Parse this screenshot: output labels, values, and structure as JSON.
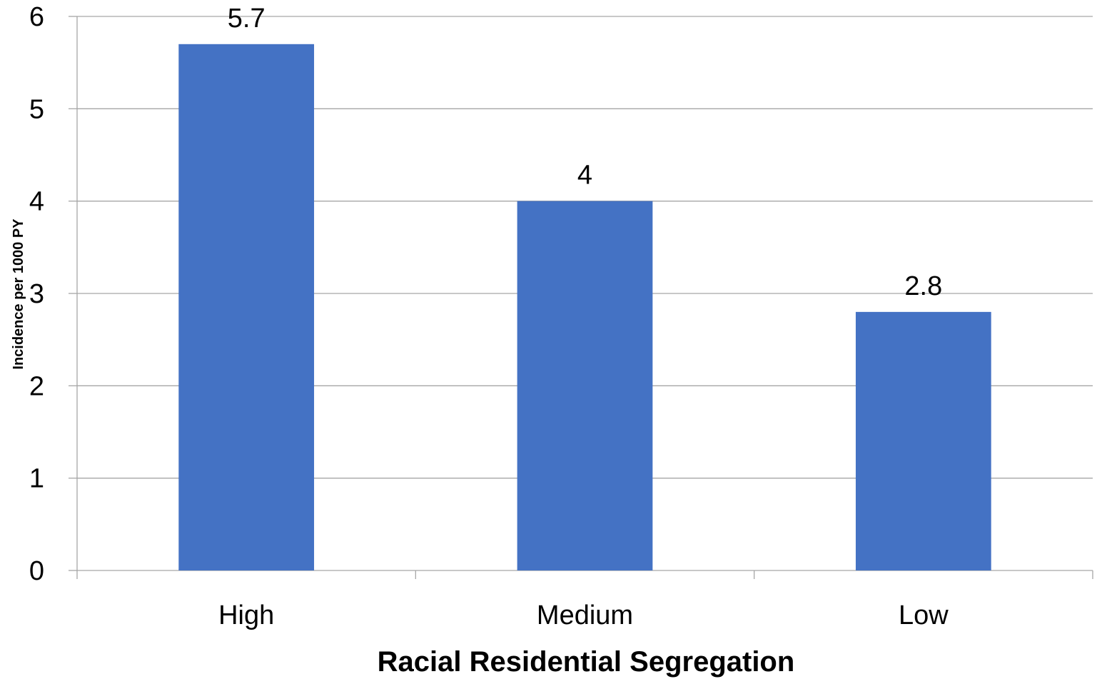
{
  "chart_data": {
    "type": "bar",
    "categories": [
      "High",
      "Medium",
      "Low"
    ],
    "values": [
      5.7,
      4,
      2.8
    ],
    "data_labels": [
      "5.7",
      "4",
      "2.8"
    ],
    "xlabel": "Racial Residential Segregation",
    "ylabel": "Incidence per 1000 PY",
    "ylim": [
      0,
      6
    ],
    "yticks": [
      0,
      1,
      2,
      3,
      4,
      5,
      6
    ],
    "grid": true,
    "legend": "none",
    "colors": {
      "bar": "#4472C4",
      "grid": "#A6A6A6",
      "axis": "#A6A6A6",
      "text": "#000000"
    }
  }
}
